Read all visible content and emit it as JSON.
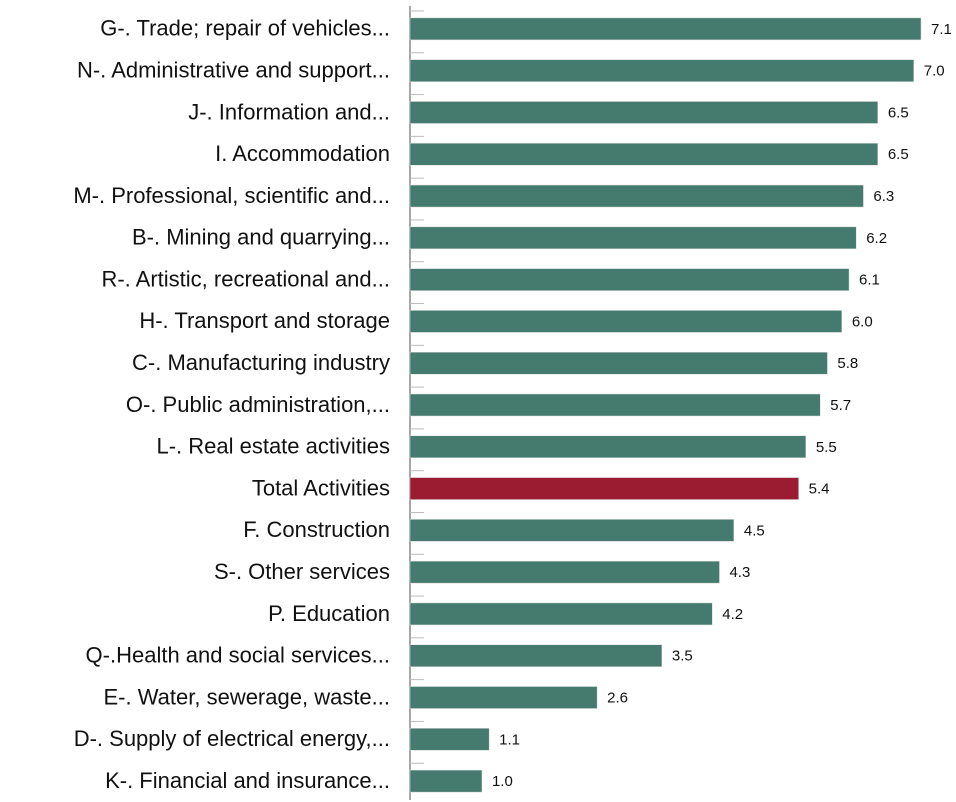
{
  "chart_data": {
    "type": "barh",
    "categories": [
      "G-. Trade; repair of vehicles...",
      "N-. Administrative and support...",
      "J-. Information and...",
      "I. Accommodation",
      "M-. Professional, scientific and...",
      "B-. Mining and quarrying...",
      "R-. Artistic, recreational and...",
      "H-. Transport and storage",
      "C-. Manufacturing industry",
      "O-. Public administration,...",
      "L-. Real estate activities",
      "Total Activities",
      "F. Construction",
      "S-. Other services",
      "P. Education",
      "Q-.Health and social services...",
      "E-. Water, sewerage, waste...",
      "D-. Supply of electrical energy,...",
      "K-. Financial and insurance..."
    ],
    "values": [
      7.1,
      7.0,
      6.5,
      6.5,
      6.3,
      6.2,
      6.1,
      6.0,
      5.8,
      5.7,
      5.5,
      5.4,
      4.5,
      4.3,
      4.2,
      3.5,
      2.6,
      1.1,
      1.0
    ],
    "value_labels": [
      "7.1",
      "7.0",
      "6.5",
      "6.5",
      "6.3",
      "6.2",
      "6.1",
      "6.0",
      "5.8",
      "5.7",
      "5.5",
      "5.4",
      "4.5",
      "4.3",
      "4.2",
      "3.5",
      "2.6",
      "1.1",
      "1.0"
    ],
    "colors": [
      "#457b6e",
      "#457b6e",
      "#457b6e",
      "#457b6e",
      "#457b6e",
      "#457b6e",
      "#457b6e",
      "#457b6e",
      "#457b6e",
      "#457b6e",
      "#457b6e",
      "#9b1b30",
      "#457b6e",
      "#457b6e",
      "#457b6e",
      "#457b6e",
      "#457b6e",
      "#457b6e",
      "#457b6e"
    ],
    "xlim": [
      0,
      7.1
    ]
  }
}
